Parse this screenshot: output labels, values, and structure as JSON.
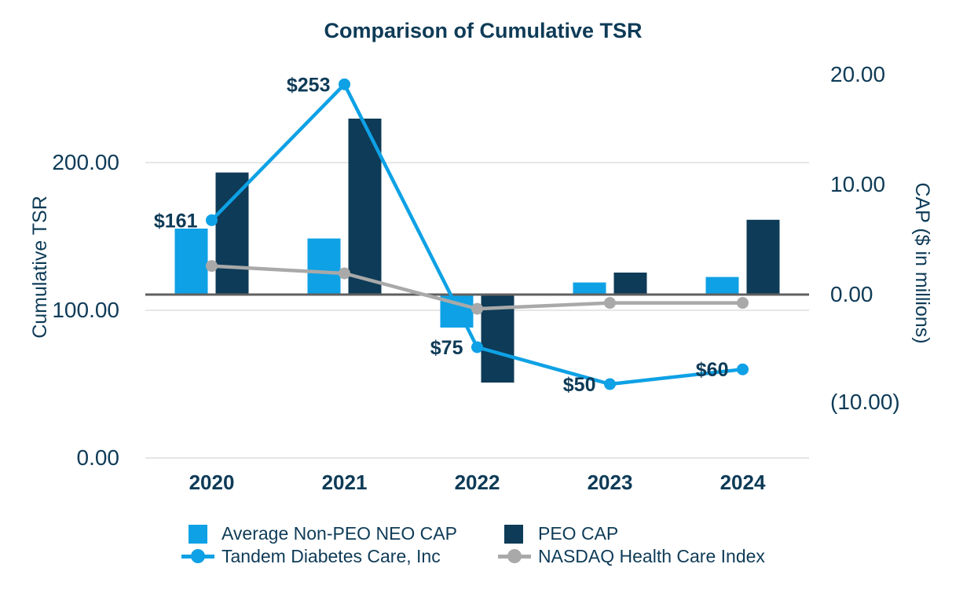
{
  "title": "Comparison of Cumulative TSR",
  "axes": {
    "left": {
      "title": "Cumulative TSR",
      "ticks": [
        "200.00",
        "100.00",
        "0.00"
      ]
    },
    "right": {
      "title": "CAP ($ in millions)",
      "ticks": [
        "20.00",
        "10.00",
        "0.00",
        "(10.00)"
      ]
    },
    "x": {
      "categories": [
        "2020",
        "2021",
        "2022",
        "2023",
        "2024"
      ]
    }
  },
  "legend": {
    "items": [
      {
        "label": "Average Non-PEO NEO CAP",
        "marker": "square",
        "color": "#0ea1e5"
      },
      {
        "label": "PEO CAP",
        "marker": "square",
        "color": "#0e3b57"
      },
      {
        "label": "Tandem Diabetes Care, Inc",
        "marker": "line-dot",
        "color": "#0ea1e5"
      },
      {
        "label": "NASDAQ Health Care Index",
        "marker": "line-dot",
        "color": "#a9a9a9"
      }
    ]
  },
  "colors": {
    "accent_blue": "#0ea1e5",
    "navy": "#0e3b57",
    "gray": "#a9a9a9",
    "gridline": "#e6e6e6",
    "zero_line": "#606060",
    "background": "#ffffff",
    "text": "#0e3b57"
  },
  "chart_data": {
    "type": "combo",
    "title": "Comparison of Cumulative TSR",
    "categories": [
      "2020",
      "2021",
      "2022",
      "2023",
      "2024"
    ],
    "left_axis": {
      "label": "Cumulative TSR",
      "tick_values": [
        200,
        100,
        0
      ],
      "range": [
        0,
        267
      ]
    },
    "right_axis": {
      "label": "CAP ($ in millions)",
      "tick_values": [
        20,
        10,
        0,
        -10
      ],
      "range": [
        -14.9,
        21.1
      ]
    },
    "grid": "horizontal",
    "legend_position": "bottom",
    "series": [
      {
        "name": "Average Non-PEO NEO CAP",
        "type": "bar",
        "axis": "right",
        "color": "#0ea1e5",
        "values": [
          6.0,
          5.1,
          -3.0,
          1.1,
          1.6
        ]
      },
      {
        "name": "PEO CAP",
        "type": "bar",
        "axis": "right",
        "color": "#0e3b57",
        "values": [
          11.1,
          16.0,
          -8.0,
          2.0,
          6.8
        ]
      },
      {
        "name": "Tandem Diabetes Care, Inc",
        "type": "line",
        "axis": "left",
        "color": "#0ea1e5",
        "values": [
          161,
          253,
          75,
          50,
          60
        ],
        "point_labels": [
          "$161",
          "$253",
          "$75",
          "$50",
          "$60"
        ]
      },
      {
        "name": "NASDAQ Health Care Index",
        "type": "line",
        "axis": "left",
        "color": "#a9a9a9",
        "values": [
          130,
          125,
          101,
          105,
          105
        ]
      }
    ]
  }
}
